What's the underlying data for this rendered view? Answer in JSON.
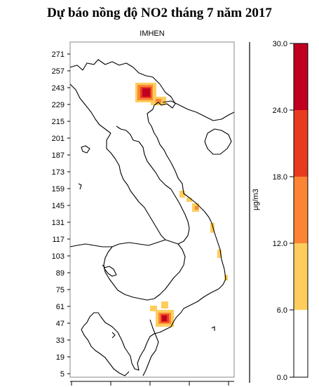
{
  "title": "Dự báo nồng độ NO2 tháng 7 năm 2017",
  "subtitle": "IMHEN",
  "map": {
    "y_ticks": [
      "271",
      "257",
      "243",
      "229",
      "215",
      "201",
      "187",
      "173",
      "159",
      "145",
      "131",
      "117",
      "103",
      "89",
      "75",
      "61",
      "47",
      "33",
      "19",
      "5"
    ]
  },
  "legend": {
    "unit": "μg/m3",
    "ticks": [
      "30.0",
      "24.0",
      "18.0",
      "12.0",
      "6.0",
      "0.0"
    ],
    "colors": [
      "#c1001f",
      "#e83a1f",
      "#fb8535",
      "#fecd5c",
      "#ffffff"
    ]
  },
  "hotspots": [
    {
      "name": "hanoi-hotspot",
      "color": "#c1001f"
    },
    {
      "name": "hcm-hotspot",
      "color": "#c1001f"
    }
  ]
}
